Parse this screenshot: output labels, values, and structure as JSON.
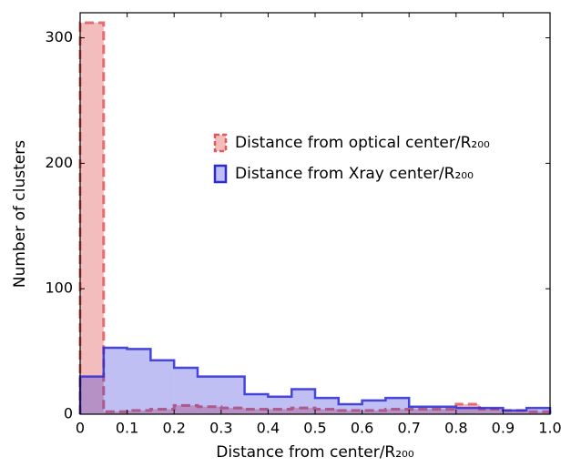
{
  "chart_data": {
    "type": "histogram",
    "xlabel": "Distance from center/R₂₀₀",
    "ylabel": "Number of clusters",
    "bins": [
      0,
      0.05,
      0.1,
      0.15,
      0.2,
      0.25,
      0.3,
      0.35,
      0.4,
      0.45,
      0.5,
      0.55,
      0.6,
      0.65,
      0.7,
      0.75,
      0.8,
      0.85,
      0.9,
      0.95,
      1.0
    ],
    "series": [
      {
        "name": "Distance from optical center/R₂₀₀",
        "color": "#e05a5a",
        "values": [
          312,
          2,
          3,
          4,
          7,
          6,
          5,
          4,
          4,
          5,
          4,
          3,
          3,
          4,
          4,
          4,
          8,
          4,
          3,
          2
        ]
      },
      {
        "name": "Distance from Xray center/R₂₀₀",
        "color": "#2a2ad6",
        "values": [
          30,
          53,
          52,
          43,
          37,
          30,
          30,
          16,
          14,
          20,
          13,
          8,
          11,
          13,
          6,
          6,
          5,
          5,
          3,
          5
        ]
      }
    ],
    "xlim": [
      0,
      1
    ],
    "ylim": [
      0,
      320
    ],
    "xticks": [
      0,
      0.1,
      0.2,
      0.3,
      0.4,
      0.5,
      0.6,
      0.7,
      0.8,
      0.9,
      {
        "value": 1,
        "label": "1.0"
      }
    ],
    "yticks": [
      0,
      100,
      200,
      300
    ],
    "legend": "upper right"
  }
}
